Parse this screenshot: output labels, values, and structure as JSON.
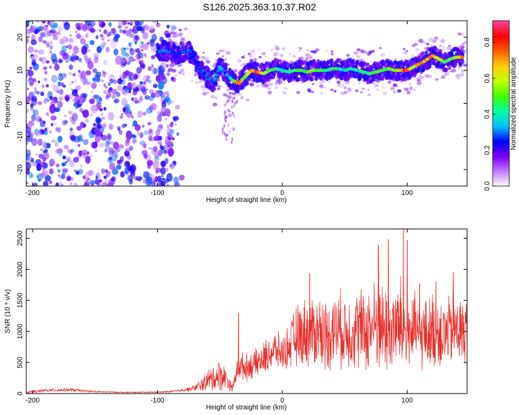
{
  "title": "S126.2025.363.10.37.R02",
  "colors": {
    "scatter_base": "#8a2be2",
    "snr_line": "#e8302a",
    "axis": "#000000"
  },
  "chart_data": [
    {
      "type": "heatmap",
      "title": "S126.2025.363.10.37.R02",
      "xlabel": "Height of straight line (km)",
      "ylabel": "Frequency (Hz)",
      "xlim": [
        -205,
        148
      ],
      "ylim": [
        -25,
        25
      ],
      "x_ticks": [
        -200,
        -100,
        0,
        100
      ],
      "x_tick_labels": [
        "-200",
        "-100",
        "0",
        "100"
      ],
      "y_ticks": [
        -20,
        -10,
        0,
        10,
        20
      ],
      "y_tick_labels": [
        "-20",
        "-10",
        "0",
        "10",
        "20"
      ],
      "colorbar": {
        "label": "Normalized spectral amplitude",
        "range": [
          0,
          0.92
        ],
        "ticks": [
          0,
          0.2,
          0.4,
          0.6,
          0.8
        ],
        "tick_labels": [
          "0.0",
          "0.2",
          "0.4",
          "0.6",
          "0.8"
        ],
        "colormap": [
          "#ffffff",
          "#c080ff",
          "#7a00ff",
          "#0000ff",
          "#00c0ff",
          "#00ffa0",
          "#40ff00",
          "#c0ff00",
          "#ffd000",
          "#ff6000",
          "#ff0000",
          "#ff40a0"
        ]
      },
      "noise_region": {
        "x_range": [
          -205,
          -90
        ],
        "y_range": [
          -25,
          25
        ],
        "amplitude": 0.12
      },
      "ridge": {
        "x": [
          -100,
          -95,
          -90,
          -85,
          -80,
          -75,
          -70,
          -65,
          -60,
          -55,
          -50,
          -45,
          -40,
          -35,
          -30,
          -25,
          -20,
          -15,
          -10,
          -5,
          0,
          5,
          10,
          15,
          20,
          25,
          30,
          35,
          40,
          45,
          50,
          55,
          60,
          65,
          70,
          75,
          80,
          85,
          90,
          95,
          100,
          105,
          110,
          115,
          120,
          125,
          130,
          135,
          140,
          145
        ],
        "y": [
          15.5,
          16,
          15.5,
          15,
          15.5,
          16,
          13,
          10,
          8,
          6.5,
          11,
          9,
          7,
          6,
          8,
          10,
          9.5,
          9,
          10,
          10.5,
          10,
          9.5,
          10,
          10,
          9.5,
          10,
          10,
          10,
          10.5,
          10.5,
          10,
          10.5,
          10,
          9.5,
          9,
          9.5,
          10,
          10.5,
          10,
          10,
          10,
          11,
          12,
          13,
          14.5,
          13.5,
          12.5,
          13.5,
          14,
          14
        ],
        "amplitude": [
          0.3,
          0.35,
          0.3,
          0.28,
          0.3,
          0.3,
          0.25,
          0.28,
          0.3,
          0.3,
          0.35,
          0.3,
          0.45,
          0.85,
          0.5,
          0.7,
          0.85,
          0.6,
          0.5,
          0.45,
          0.4,
          0.45,
          0.5,
          0.5,
          0.5,
          0.55,
          0.5,
          0.45,
          0.5,
          0.45,
          0.4,
          0.45,
          0.4,
          0.45,
          0.5,
          0.55,
          0.5,
          0.5,
          0.6,
          0.7,
          0.85,
          0.6,
          0.8,
          0.7,
          0.85,
          0.6,
          0.5,
          0.5,
          0.6,
          0.7
        ]
      }
    },
    {
      "type": "line",
      "title": "",
      "xlabel": "Height of straight line (km)",
      "ylabel": "SNR (10 * v/v)",
      "xlim": [
        -205,
        148
      ],
      "ylim": [
        0,
        2650
      ],
      "x_ticks": [
        -200,
        -100,
        0,
        100
      ],
      "x_tick_labels": [
        "-200",
        "-100",
        "0",
        "100"
      ],
      "y_ticks": [
        0,
        500,
        1000,
        1500,
        2000,
        2500
      ],
      "y_tick_labels": [
        "0",
        "500",
        "1000",
        "1500",
        "2000",
        "2500"
      ],
      "series": [
        {
          "name": "SNR",
          "x": [
            -205,
            -190,
            -170,
            -150,
            -130,
            -110,
            -95,
            -85,
            -75,
            -70,
            -65,
            -60,
            -55,
            -50,
            -45,
            -40,
            -35,
            -30,
            -25,
            -20,
            -15,
            -10,
            -5,
            0,
            5,
            10,
            15,
            20,
            25,
            30,
            35,
            40,
            45,
            50,
            55,
            60,
            65,
            70,
            75,
            80,
            85,
            90,
            95,
            100,
            105,
            110,
            115,
            120,
            125,
            130,
            135,
            140,
            145,
            148
          ],
          "mean": [
            20,
            50,
            60,
            30,
            20,
            20,
            25,
            40,
            70,
            90,
            140,
            200,
            250,
            300,
            250,
            80,
            450,
            420,
            450,
            500,
            550,
            650,
            700,
            650,
            750,
            900,
            950,
            1000,
            1000,
            1000,
            950,
            1000,
            1050,
            1000,
            1000,
            1050,
            1000,
            1050,
            1100,
            1050,
            1000,
            1050,
            1100,
            1000,
            1000,
            950,
            950,
            1000,
            1000,
            950,
            1000,
            1050,
            1000,
            1000
          ],
          "spread": [
            20,
            30,
            30,
            15,
            10,
            10,
            15,
            20,
            40,
            60,
            120,
            200,
            250,
            300,
            200,
            60,
            250,
            250,
            250,
            250,
            300,
            350,
            350,
            300,
            400,
            550,
            600,
            650,
            650,
            700,
            650,
            700,
            700,
            700,
            700,
            750,
            800,
            800,
            850,
            850,
            800,
            850,
            900,
            750,
            700,
            650,
            650,
            700,
            700,
            650,
            650,
            700,
            650,
            600
          ],
          "peaks": [
            [
              -35,
              1290
            ],
            [
              22,
              1930
            ],
            [
              77,
              2390
            ],
            [
              85,
              2480
            ],
            [
              97,
              2650
            ],
            [
              100,
              2470
            ],
            [
              110,
              1770
            ],
            [
              123,
              1800
            ],
            [
              137,
              1950
            ]
          ]
        }
      ]
    }
  ]
}
